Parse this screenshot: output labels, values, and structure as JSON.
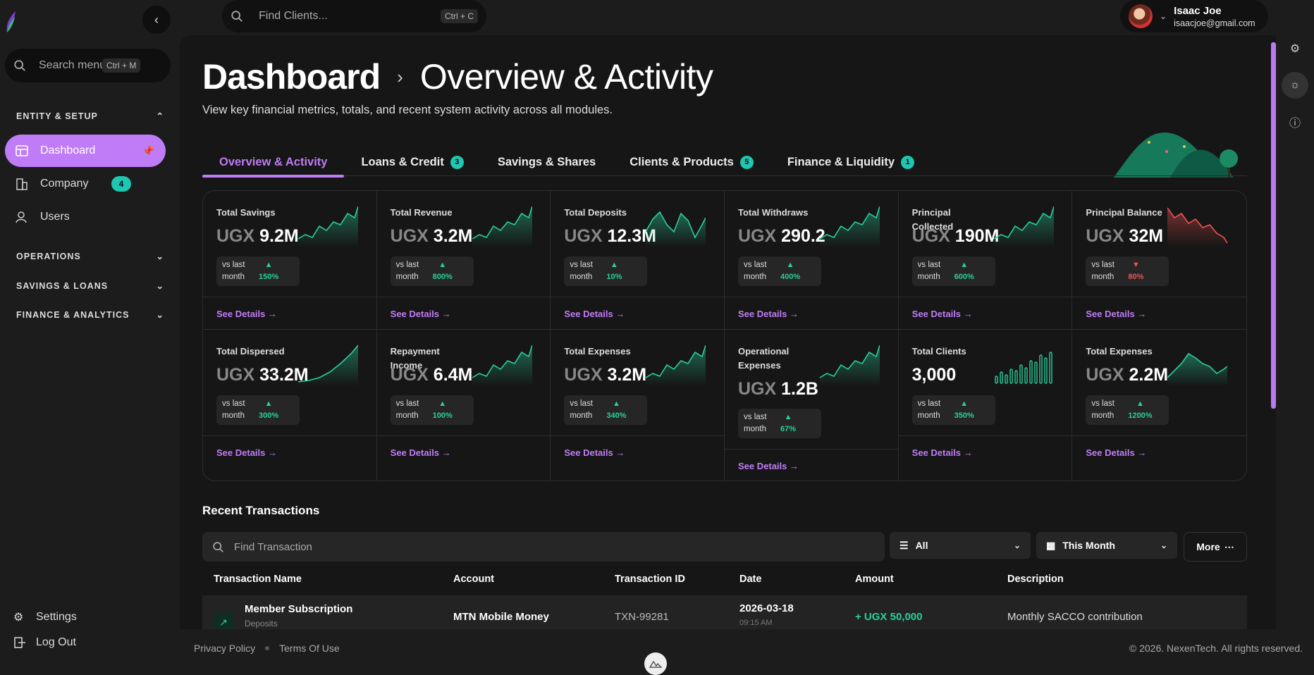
{
  "sidebar": {
    "search_placeholder": "Search menu",
    "search_shortcut": "Ctrl + M",
    "sections": [
      {
        "label": "ENTITY & SETUP"
      },
      {
        "label": "OPERATIONS"
      },
      {
        "label": "SAVINGS & LOANS"
      },
      {
        "label": "FINANCE & ANALYTICS"
      }
    ],
    "items": [
      {
        "label": "Dashboard"
      },
      {
        "label": "Company",
        "badge": "4"
      },
      {
        "label": "Users"
      }
    ],
    "footer": {
      "settings": "Settings",
      "logout": "Log Out"
    }
  },
  "topbar": {
    "search_placeholder": "Find Clients...",
    "search_shortcut": "Ctrl + C",
    "user": {
      "name": "Isaac Joe",
      "email": "isaacjoe@gmail.com"
    }
  },
  "page": {
    "title": "Dashboard",
    "subtitle_title": "Overview & Activity",
    "description": "View key financial metrics, totals, and recent system activity across all modules."
  },
  "tabs": [
    {
      "label": "Overview & Activity",
      "badge": ""
    },
    {
      "label": "Loans & Credit",
      "badge": "3"
    },
    {
      "label": "Savings & Shares",
      "badge": ""
    },
    {
      "label": "Clients & Products",
      "badge": "5"
    },
    {
      "label": "Finance & Liquidity",
      "badge": "1"
    }
  ],
  "cards": [
    {
      "label": "Total Savings",
      "currency": "UGX",
      "value": "9.2M",
      "cmp_label": "vs last month",
      "change": "150%",
      "trend": "up",
      "see": "See Details →",
      "spark": "line"
    },
    {
      "label": "Total Revenue",
      "currency": "UGX",
      "value": "3.2M",
      "cmp_label": "vs last month",
      "change": "800%",
      "trend": "up",
      "see": "See Details →",
      "spark": "line"
    },
    {
      "label": "Total Deposits",
      "currency": "UGX",
      "value": "12.3M",
      "cmp_label": "vs last month",
      "change": "10%",
      "trend": "up",
      "see": "See Details →",
      "spark": "wave"
    },
    {
      "label": "Total Withdraws",
      "currency": "UGX",
      "value": "290.2",
      "cmp_label": "vs last month",
      "change": "400%",
      "trend": "up",
      "see": "See Details →",
      "spark": "line"
    },
    {
      "label": "Principal Collected",
      "currency": "UGX",
      "value": "190M",
      "cmp_label": "vs last month",
      "change": "600%",
      "trend": "up",
      "see": "See Details →",
      "spark": "line"
    },
    {
      "label": "Principal Balance",
      "currency": "UGX",
      "value": "32M",
      "cmp_label": "vs last month",
      "change": "80%",
      "trend": "down",
      "see": "See Details →",
      "spark": "down"
    },
    {
      "label": "Total Dispersed",
      "currency": "UGX",
      "value": "33.2M",
      "cmp_label": "vs last month",
      "change": "300%",
      "trend": "up",
      "see": "See Details →",
      "spark": "curve"
    },
    {
      "label": "Repayment Income",
      "currency": "UGX",
      "value": "6.4M",
      "cmp_label": "vs last month",
      "change": "100%",
      "trend": "up",
      "see": "See Details →",
      "spark": "line"
    },
    {
      "label": "Total Expenses",
      "currency": "UGX",
      "value": "3.2M",
      "cmp_label": "vs last month",
      "change": "340%",
      "trend": "up",
      "see": "See Details →",
      "spark": "line"
    },
    {
      "label": "Operational Expenses",
      "currency": "UGX",
      "value": "1.2B",
      "cmp_label": "vs last month",
      "change": "67%",
      "trend": "up",
      "see": "See Details →",
      "spark": "line",
      "tall": true
    },
    {
      "label": "Total Clients",
      "currency": "",
      "value": "3,000",
      "cmp_label": "vs last month",
      "change": "350%",
      "trend": "up",
      "see": "See Details →",
      "spark": "bars"
    },
    {
      "label": "Total Expenses",
      "currency": "UGX",
      "value": "2.2M",
      "cmp_label": "vs last month",
      "change": "1200%",
      "trend": "up",
      "see": "See Details →",
      "spark": "hump"
    }
  ],
  "transactions": {
    "title": "Recent Transactions",
    "search_placeholder": "Find Transaction",
    "filter_value": "All",
    "period_value": "This Month",
    "more_label": "More",
    "columns": [
      "Transaction Name",
      "Account",
      "Transaction ID",
      "Date",
      "Amount",
      "Description"
    ],
    "rows": [
      {
        "name": "Member Subscription",
        "sub": "Deposits",
        "account": "MTN Mobile Money",
        "id": "TXN-99281",
        "date": "2026-03-18",
        "time": "09:15 AM",
        "amount": "+ UGX 50,000",
        "description": "Monthly SACCO contribution"
      }
    ]
  },
  "footer": {
    "privacy": "Privacy Policy",
    "terms": "Terms Of Use",
    "copyright": "© 2026. NexenTech. All rights reserved."
  },
  "colors": {
    "accent": "#c07cf6",
    "positive": "#28d09c",
    "negative": "#f05252",
    "badge": "#1ec8b0"
  }
}
